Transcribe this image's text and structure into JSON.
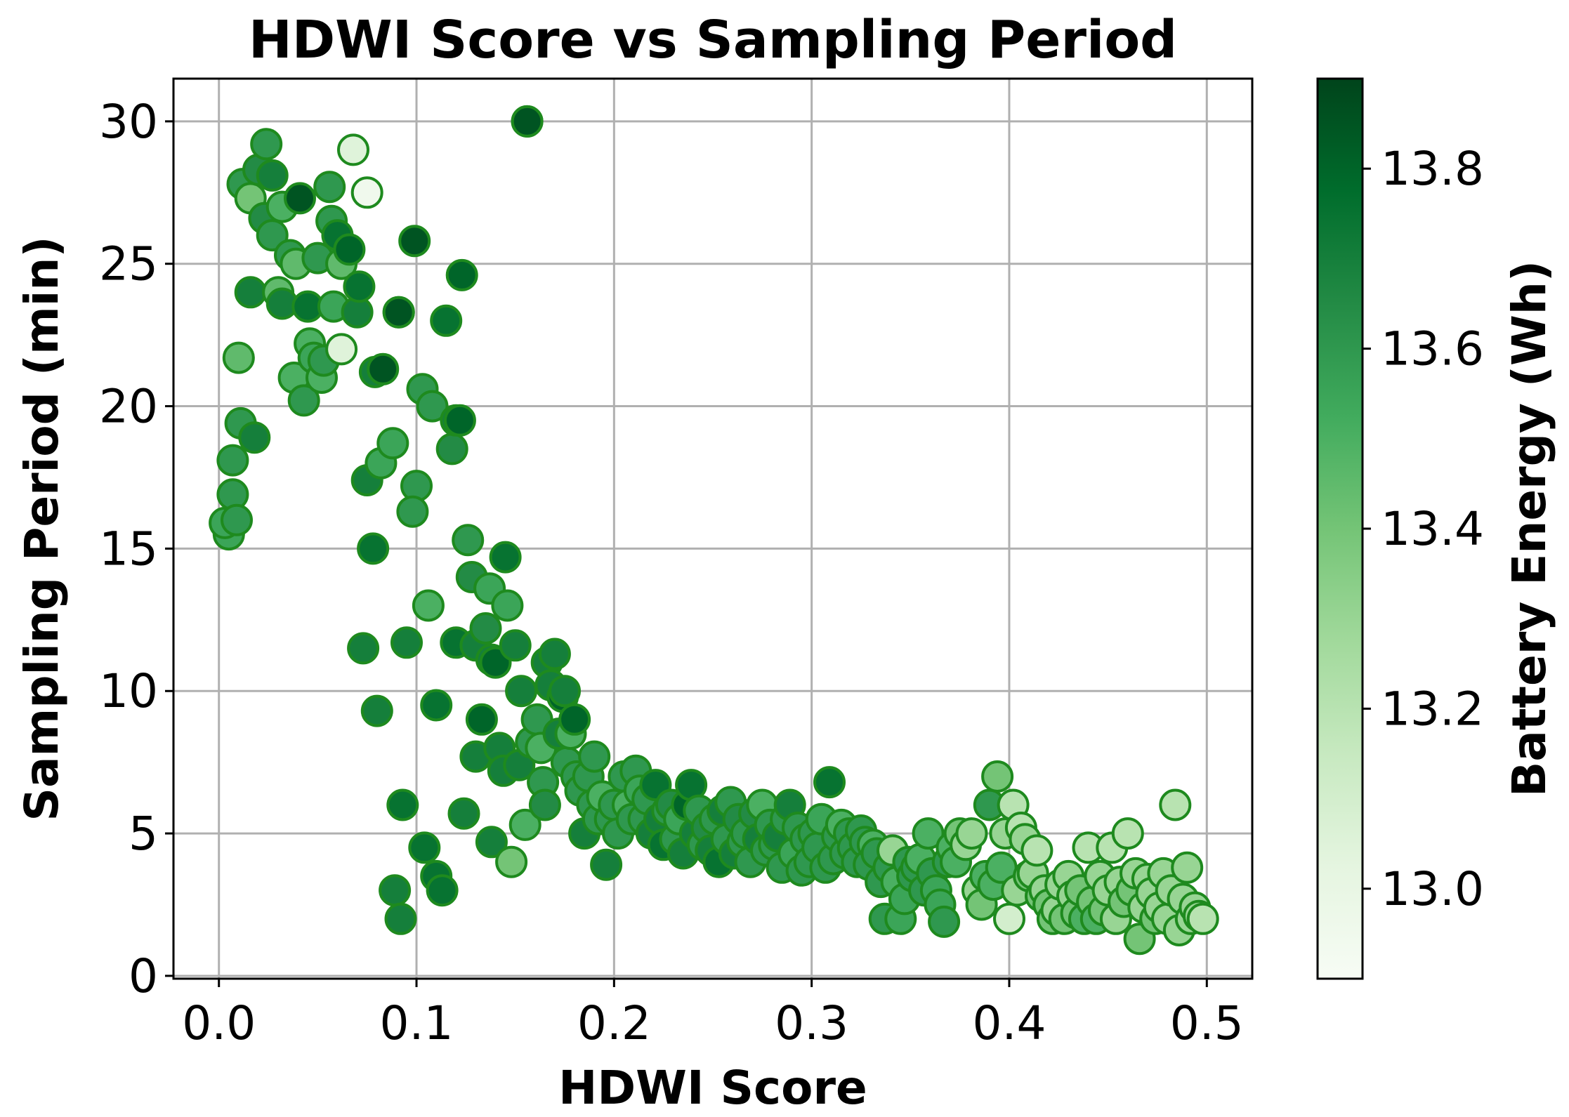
{
  "chart_data": {
    "type": "scatter",
    "title": "HDWI Score vs Sampling Period",
    "xlabel": "HDWI Score",
    "ylabel": "Sampling Period (min)",
    "colorbar_label": "Battery Energy (Wh)",
    "xlim": [
      -0.023,
      0.523
    ],
    "ylim": [
      -0.1,
      31.5
    ],
    "clim": [
      12.9,
      13.9
    ],
    "x_ticks": [
      0.0,
      0.1,
      0.2,
      0.3,
      0.4,
      0.5
    ],
    "x_tick_labels": [
      "0.0",
      "0.1",
      "0.2",
      "0.3",
      "0.4",
      "0.5"
    ],
    "y_ticks": [
      0,
      5,
      10,
      15,
      20,
      25,
      30
    ],
    "y_tick_labels": [
      "0",
      "5",
      "10",
      "15",
      "20",
      "25",
      "30"
    ],
    "colorbar_ticks": [
      13.0,
      13.2,
      13.4,
      13.6,
      13.8
    ],
    "colorbar_tick_labels": [
      "13.0",
      "13.2",
      "13.4",
      "13.6",
      "13.8"
    ],
    "grid": true,
    "colormap": "Greens",
    "marker_edge_color": "#1e8a1e",
    "colormap_stops": [
      "#f7fcf5",
      "#e5f5e0",
      "#c7e9c0",
      "#a1d99b",
      "#74c476",
      "#41ab5d",
      "#238b45",
      "#006d2c",
      "#00441b"
    ],
    "points": [
      [
        0.005,
        15.5,
        13.55
      ],
      [
        0.003,
        15.9,
        13.55
      ],
      [
        0.007,
        18.1,
        13.6
      ],
      [
        0.007,
        16.9,
        13.6
      ],
      [
        0.009,
        16.0,
        13.6
      ],
      [
        0.011,
        19.4,
        13.6
      ],
      [
        0.01,
        21.7,
        13.45
      ],
      [
        0.018,
        18.9,
        13.7
      ],
      [
        0.012,
        27.8,
        13.6
      ],
      [
        0.016,
        27.3,
        13.4
      ],
      [
        0.016,
        24.0,
        13.7
      ],
      [
        0.02,
        28.3,
        13.65
      ],
      [
        0.023,
        26.6,
        13.65
      ],
      [
        0.024,
        29.2,
        13.6
      ],
      [
        0.027,
        26.0,
        13.6
      ],
      [
        0.027,
        28.1,
        13.7
      ],
      [
        0.03,
        24.0,
        13.45
      ],
      [
        0.032,
        27.0,
        13.5
      ],
      [
        0.032,
        23.6,
        13.7
      ],
      [
        0.036,
        25.3,
        13.6
      ],
      [
        0.039,
        25.0,
        13.45
      ],
      [
        0.038,
        21.0,
        13.5
      ],
      [
        0.041,
        27.3,
        13.85
      ],
      [
        0.043,
        20.2,
        13.6
      ],
      [
        0.045,
        23.5,
        13.75
      ],
      [
        0.046,
        22.2,
        13.5
      ],
      [
        0.048,
        21.7,
        13.55
      ],
      [
        0.05,
        25.2,
        13.6
      ],
      [
        0.052,
        21.0,
        13.5
      ],
      [
        0.053,
        21.6,
        13.6
      ],
      [
        0.056,
        27.7,
        13.6
      ],
      [
        0.057,
        26.5,
        13.6
      ],
      [
        0.058,
        23.5,
        13.55
      ],
      [
        0.06,
        26.0,
        13.75
      ],
      [
        0.062,
        25.0,
        13.45
      ],
      [
        0.062,
        22.0,
        13.05
      ],
      [
        0.066,
        25.5,
        13.8
      ],
      [
        0.068,
        29.0,
        13.05
      ],
      [
        0.07,
        23.3,
        13.7
      ],
      [
        0.071,
        24.2,
        13.75
      ],
      [
        0.075,
        27.5,
        12.95
      ],
      [
        0.075,
        17.4,
        13.7
      ],
      [
        0.078,
        15.0,
        13.75
      ],
      [
        0.079,
        21.2,
        13.7
      ],
      [
        0.082,
        18.0,
        13.55
      ],
      [
        0.083,
        21.3,
        13.85
      ],
      [
        0.073,
        11.5,
        13.7
      ],
      [
        0.08,
        9.3,
        13.7
      ],
      [
        0.088,
        18.7,
        13.55
      ],
      [
        0.091,
        23.3,
        13.8
      ],
      [
        0.091,
        23.3,
        13.85
      ],
      [
        0.093,
        6.0,
        13.75
      ],
      [
        0.095,
        11.7,
        13.7
      ],
      [
        0.089,
        3.0,
        13.7
      ],
      [
        0.092,
        2.0,
        13.7
      ],
      [
        0.099,
        25.8,
        13.85
      ],
      [
        0.1,
        17.2,
        13.6
      ],
      [
        0.098,
        16.3,
        13.6
      ],
      [
        0.103,
        20.6,
        13.6
      ],
      [
        0.106,
        13.0,
        13.5
      ],
      [
        0.108,
        20.0,
        13.6
      ],
      [
        0.104,
        4.5,
        13.75
      ],
      [
        0.11,
        9.5,
        13.75
      ],
      [
        0.11,
        3.5,
        13.75
      ],
      [
        0.113,
        3.0,
        13.75
      ],
      [
        0.115,
        23.0,
        13.75
      ],
      [
        0.118,
        18.5,
        13.65
      ],
      [
        0.12,
        19.5,
        13.7
      ],
      [
        0.122,
        19.5,
        13.8
      ],
      [
        0.123,
        24.6,
        13.8
      ],
      [
        0.12,
        11.7,
        13.75
      ],
      [
        0.124,
        5.7,
        13.7
      ],
      [
        0.126,
        15.3,
        13.6
      ],
      [
        0.128,
        14.0,
        13.65
      ],
      [
        0.13,
        11.6,
        13.7
      ],
      [
        0.13,
        7.7,
        13.7
      ],
      [
        0.133,
        9.0,
        13.8
      ],
      [
        0.135,
        12.2,
        13.65
      ],
      [
        0.137,
        13.6,
        13.55
      ],
      [
        0.138,
        11.1,
        13.7
      ],
      [
        0.14,
        11.0,
        13.8
      ],
      [
        0.138,
        4.7,
        13.7
      ],
      [
        0.142,
        8.0,
        13.7
      ],
      [
        0.144,
        7.2,
        13.7
      ],
      [
        0.145,
        14.7,
        13.75
      ],
      [
        0.146,
        13.0,
        13.55
      ],
      [
        0.148,
        4.0,
        13.4
      ],
      [
        0.15,
        11.6,
        13.7
      ],
      [
        0.152,
        7.4,
        13.7
      ],
      [
        0.153,
        10.0,
        13.7
      ],
      [
        0.155,
        5.3,
        13.5
      ],
      [
        0.156,
        30.0,
        13.85
      ],
      [
        0.156,
        30.0,
        13.85
      ],
      [
        0.158,
        8.2,
        13.6
      ],
      [
        0.161,
        9.0,
        13.6
      ],
      [
        0.163,
        8.0,
        13.5
      ],
      [
        0.164,
        6.8,
        13.6
      ],
      [
        0.165,
        6.0,
        13.65
      ],
      [
        0.166,
        11.0,
        13.7
      ],
      [
        0.168,
        10.2,
        13.7
      ],
      [
        0.17,
        11.3,
        13.7
      ],
      [
        0.172,
        8.5,
        13.7
      ],
      [
        0.174,
        9.8,
        13.8
      ],
      [
        0.175,
        10.0,
        13.7
      ],
      [
        0.176,
        7.5,
        13.6
      ],
      [
        0.178,
        8.5,
        13.5
      ],
      [
        0.18,
        9.0,
        13.8
      ],
      [
        0.181,
        7.0,
        13.6
      ],
      [
        0.183,
        6.5,
        13.6
      ],
      [
        0.185,
        5.0,
        13.7
      ],
      [
        0.187,
        7.0,
        13.6
      ],
      [
        0.189,
        6.0,
        13.6
      ],
      [
        0.19,
        7.7,
        13.6
      ],
      [
        0.192,
        5.5,
        13.6
      ],
      [
        0.194,
        6.3,
        13.5
      ],
      [
        0.196,
        3.9,
        13.7
      ],
      [
        0.198,
        5.5,
        13.6
      ],
      [
        0.2,
        6.0,
        13.6
      ],
      [
        0.202,
        5.0,
        13.6
      ],
      [
        0.205,
        7.0,
        13.6
      ],
      [
        0.207,
        6.0,
        13.5
      ],
      [
        0.209,
        5.5,
        13.6
      ],
      [
        0.211,
        7.2,
        13.6
      ],
      [
        0.213,
        6.5,
        13.55
      ],
      [
        0.215,
        5.5,
        13.6
      ],
      [
        0.217,
        6.2,
        13.6
      ],
      [
        0.219,
        5.0,
        13.7
      ],
      [
        0.221,
        6.7,
        13.75
      ],
      [
        0.223,
        5.5,
        13.7
      ],
      [
        0.225,
        4.6,
        13.75
      ],
      [
        0.227,
        5.8,
        13.6
      ],
      [
        0.229,
        6.0,
        13.65
      ],
      [
        0.231,
        4.8,
        13.6
      ],
      [
        0.233,
        5.5,
        13.55
      ],
      [
        0.235,
        4.3,
        13.7
      ],
      [
        0.237,
        6.0,
        13.8
      ],
      [
        0.239,
        6.7,
        13.75
      ],
      [
        0.241,
        5.0,
        13.7
      ],
      [
        0.243,
        5.8,
        13.6
      ],
      [
        0.245,
        4.6,
        13.6
      ],
      [
        0.247,
        5.2,
        13.65
      ],
      [
        0.249,
        4.4,
        13.7
      ],
      [
        0.251,
        5.5,
        13.6
      ],
      [
        0.253,
        4.0,
        13.75
      ],
      [
        0.255,
        5.8,
        13.7
      ],
      [
        0.257,
        4.8,
        13.6
      ],
      [
        0.259,
        6.1,
        13.6
      ],
      [
        0.261,
        4.3,
        13.7
      ],
      [
        0.263,
        5.5,
        13.65
      ],
      [
        0.265,
        4.7,
        13.6
      ],
      [
        0.267,
        5.0,
        13.6
      ],
      [
        0.269,
        4.0,
        13.6
      ],
      [
        0.271,
        5.7,
        13.65
      ],
      [
        0.273,
        4.8,
        13.7
      ],
      [
        0.275,
        6.0,
        13.5
      ],
      [
        0.277,
        4.4,
        13.6
      ],
      [
        0.279,
        5.3,
        13.6
      ],
      [
        0.281,
        4.6,
        13.6
      ],
      [
        0.283,
        4.9,
        13.7
      ],
      [
        0.285,
        3.8,
        13.6
      ],
      [
        0.287,
        5.5,
        13.6
      ],
      [
        0.289,
        6.0,
        13.7
      ],
      [
        0.291,
        4.3,
        13.55
      ],
      [
        0.293,
        5.2,
        13.6
      ],
      [
        0.295,
        3.7,
        13.6
      ],
      [
        0.297,
        4.8,
        13.6
      ],
      [
        0.299,
        4.0,
        13.6
      ],
      [
        0.301,
        5.0,
        13.6
      ],
      [
        0.303,
        4.5,
        13.6
      ],
      [
        0.305,
        5.5,
        13.55
      ],
      [
        0.307,
        3.8,
        13.6
      ],
      [
        0.309,
        6.8,
        13.75
      ],
      [
        0.311,
        4.1,
        13.6
      ],
      [
        0.313,
        4.9,
        13.6
      ],
      [
        0.315,
        5.3,
        13.5
      ],
      [
        0.317,
        4.3,
        13.6
      ],
      [
        0.319,
        5.0,
        13.6
      ],
      [
        0.321,
        4.5,
        13.6
      ],
      [
        0.323,
        4.0,
        13.6
      ],
      [
        0.325,
        5.1,
        13.6
      ],
      [
        0.327,
        4.7,
        13.6
      ],
      [
        0.329,
        3.9,
        13.6
      ],
      [
        0.331,
        4.6,
        13.5
      ],
      [
        0.333,
        4.3,
        13.6
      ],
      [
        0.335,
        3.3,
        13.6
      ],
      [
        0.337,
        2.0,
        13.6
      ],
      [
        0.339,
        3.8,
        13.6
      ],
      [
        0.341,
        4.4,
        13.3
      ],
      [
        0.343,
        3.3,
        13.5
      ],
      [
        0.345,
        2.0,
        13.55
      ],
      [
        0.347,
        2.7,
        13.55
      ],
      [
        0.349,
        4.0,
        13.6
      ],
      [
        0.351,
        3.5,
        13.6
      ],
      [
        0.353,
        3.8,
        13.6
      ],
      [
        0.355,
        4.1,
        13.5
      ],
      [
        0.357,
        3.0,
        13.6
      ],
      [
        0.359,
        5.0,
        13.5
      ],
      [
        0.361,
        3.6,
        13.6
      ],
      [
        0.363,
        3.0,
        13.55
      ],
      [
        0.365,
        2.5,
        13.55
      ],
      [
        0.367,
        1.9,
        13.6
      ],
      [
        0.369,
        4.0,
        13.6
      ],
      [
        0.371,
        4.5,
        13.5
      ],
      [
        0.373,
        4.0,
        13.5
      ],
      [
        0.375,
        5.0,
        13.4
      ],
      [
        0.378,
        4.6,
        13.3
      ],
      [
        0.381,
        5.0,
        13.3
      ],
      [
        0.384,
        3.0,
        13.3
      ],
      [
        0.386,
        2.5,
        13.4
      ],
      [
        0.388,
        3.5,
        13.5
      ],
      [
        0.39,
        6.0,
        13.6
      ],
      [
        0.392,
        3.2,
        13.5
      ],
      [
        0.394,
        7.0,
        13.4
      ],
      [
        0.396,
        3.8,
        13.5
      ],
      [
        0.398,
        5.0,
        13.3
      ],
      [
        0.4,
        2.0,
        13.1
      ],
      [
        0.402,
        6.0,
        13.2
      ],
      [
        0.404,
        3.0,
        13.3
      ],
      [
        0.406,
        5.2,
        13.2
      ],
      [
        0.408,
        4.8,
        13.3
      ],
      [
        0.41,
        3.5,
        13.4
      ],
      [
        0.412,
        3.6,
        13.3
      ],
      [
        0.414,
        4.4,
        13.2
      ],
      [
        0.416,
        2.8,
        13.4
      ],
      [
        0.418,
        3.0,
        13.3
      ],
      [
        0.42,
        2.5,
        13.4
      ],
      [
        0.422,
        2.0,
        13.4
      ],
      [
        0.424,
        2.3,
        13.3
      ],
      [
        0.426,
        3.2,
        13.3
      ],
      [
        0.428,
        2.0,
        13.4
      ],
      [
        0.43,
        3.5,
        13.3
      ],
      [
        0.432,
        2.8,
        13.3
      ],
      [
        0.434,
        2.2,
        13.4
      ],
      [
        0.436,
        3.0,
        13.4
      ],
      [
        0.438,
        2.0,
        13.5
      ],
      [
        0.44,
        4.5,
        13.2
      ],
      [
        0.442,
        2.6,
        13.4
      ],
      [
        0.444,
        2.0,
        13.5
      ],
      [
        0.446,
        3.5,
        13.3
      ],
      [
        0.448,
        2.3,
        13.4
      ],
      [
        0.45,
        3.0,
        13.3
      ],
      [
        0.452,
        4.5,
        13.2
      ],
      [
        0.454,
        2.0,
        13.3
      ],
      [
        0.456,
        3.3,
        13.3
      ],
      [
        0.458,
        2.6,
        13.4
      ],
      [
        0.46,
        5.0,
        13.2
      ],
      [
        0.462,
        3.0,
        13.4
      ],
      [
        0.464,
        3.6,
        13.3
      ],
      [
        0.466,
        1.3,
        13.4
      ],
      [
        0.468,
        2.4,
        13.3
      ],
      [
        0.47,
        3.4,
        13.3
      ],
      [
        0.472,
        2.9,
        13.3
      ],
      [
        0.474,
        2.0,
        13.4
      ],
      [
        0.476,
        2.4,
        13.3
      ],
      [
        0.478,
        3.6,
        13.3
      ],
      [
        0.48,
        2.0,
        13.3
      ],
      [
        0.482,
        3.0,
        13.3
      ],
      [
        0.484,
        6.0,
        13.2
      ],
      [
        0.486,
        1.6,
        13.3
      ],
      [
        0.488,
        2.7,
        13.3
      ],
      [
        0.49,
        3.8,
        13.3
      ],
      [
        0.492,
        2.0,
        13.3
      ],
      [
        0.494,
        2.4,
        13.3
      ],
      [
        0.496,
        2.1,
        13.3
      ],
      [
        0.498,
        2.0,
        13.2
      ]
    ]
  }
}
